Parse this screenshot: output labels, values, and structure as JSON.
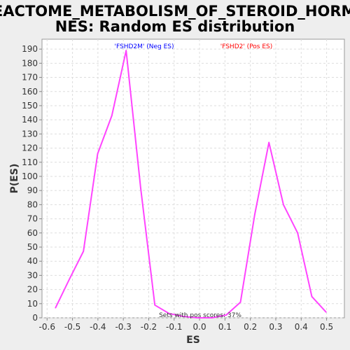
{
  "chart_data": {
    "type": "line",
    "title_line1": "REACTOME_METABOLISM_OF_STEROID_HORMO",
    "title_line2": "NES: Random ES distribution",
    "xlabel": "ES",
    "ylabel": "P(ES)",
    "xlim": [
      -0.62,
      0.57
    ],
    "ylim": [
      0,
      197
    ],
    "xticks": [
      -0.6,
      -0.5,
      -0.4,
      -0.3,
      -0.2,
      -0.1,
      0.0,
      0.1,
      0.2,
      0.3,
      0.4,
      0.5
    ],
    "xtick_labels": [
      "-0.6",
      "-0.5",
      "-0.4",
      "-0.3",
      "-0.2",
      "-0.1",
      "0.0",
      "0.1",
      "0.2",
      "0.3",
      "0.4",
      "0.5"
    ],
    "yticks": [
      0,
      10,
      20,
      30,
      40,
      50,
      60,
      70,
      80,
      90,
      100,
      110,
      120,
      130,
      140,
      150,
      160,
      170,
      180,
      190
    ],
    "grid": true,
    "series": [
      {
        "color": "#ff44ff",
        "x": [
          -0.567,
          -0.513,
          -0.457,
          -0.401,
          -0.345,
          -0.289,
          -0.232,
          -0.176,
          -0.12,
          -0.064,
          -0.008,
          0.049,
          0.105,
          0.161,
          0.217,
          0.273,
          0.33,
          0.386,
          0.442,
          0.498
        ],
        "y": [
          7,
          27,
          47,
          116,
          143,
          189,
          92,
          9,
          3,
          1,
          0,
          0,
          2,
          11,
          73,
          124,
          80,
          60,
          15,
          4
        ]
      }
    ],
    "annotations": {
      "neg_label": "'FSHD2M' (Neg ES)",
      "neg_color": "#0000ff",
      "pos_label": "'FSHD2' (Pos ES)",
      "pos_color": "#ff0000",
      "footer": "Sets with pos scores: 37%"
    }
  }
}
